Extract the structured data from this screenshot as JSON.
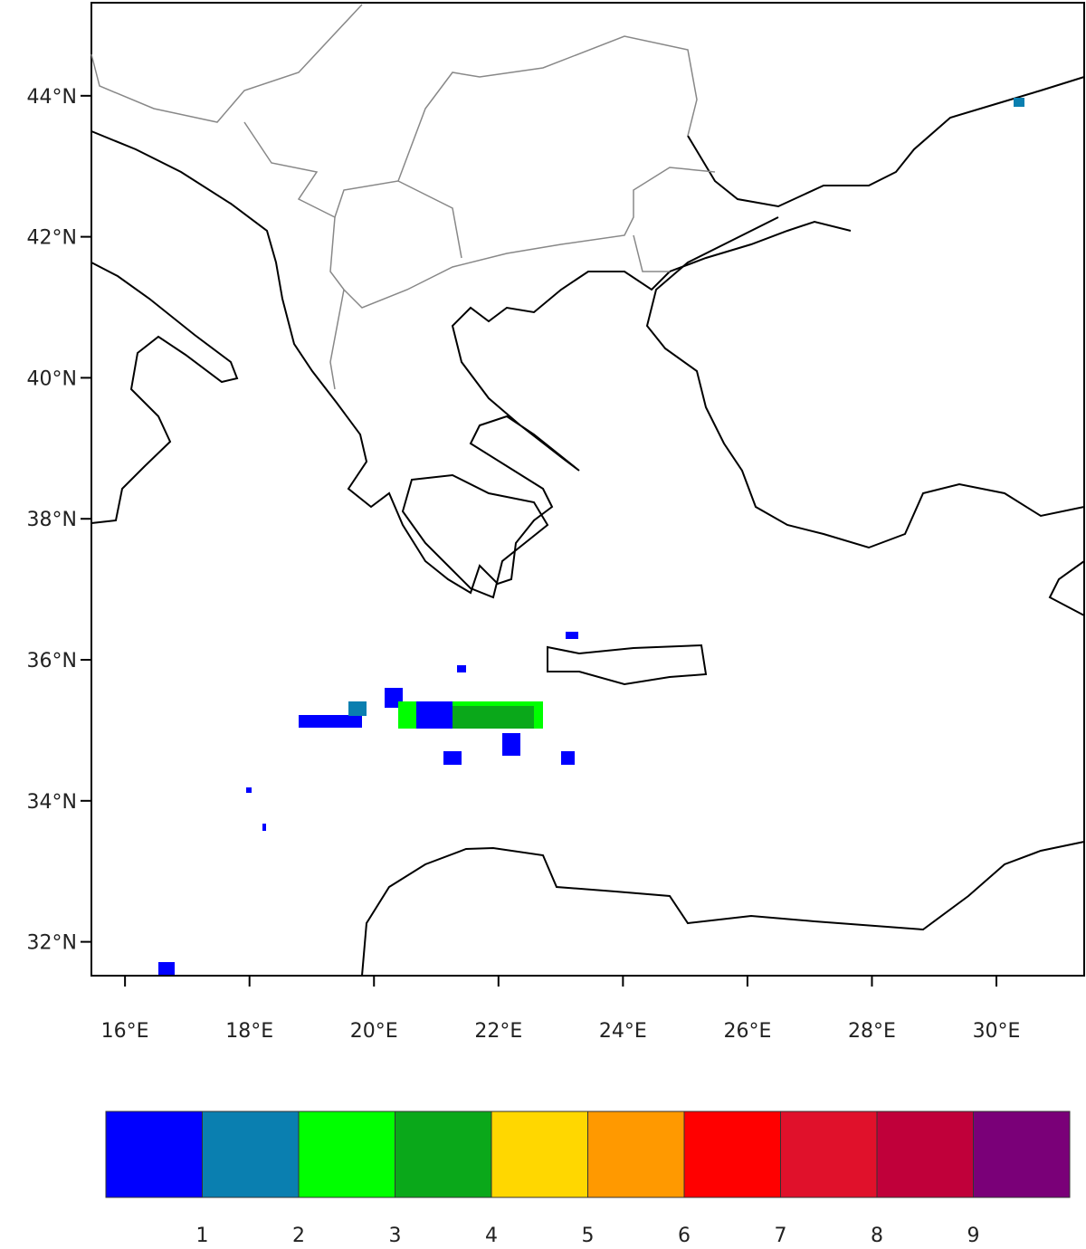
{
  "map": {
    "xlim": [
      15.46,
      31.41
    ],
    "ylim": [
      31.52,
      45.32
    ],
    "xticks": [
      {
        "value": 16,
        "label": "16°E"
      },
      {
        "value": 18,
        "label": "18°E"
      },
      {
        "value": 20,
        "label": "20°E"
      },
      {
        "value": 22,
        "label": "22°E"
      },
      {
        "value": 24,
        "label": "24°E"
      },
      {
        "value": 26,
        "label": "26°E"
      },
      {
        "value": 28,
        "label": "28°E"
      },
      {
        "value": 30,
        "label": "30°E"
      }
    ],
    "yticks": [
      {
        "value": 32,
        "label": "32°N"
      },
      {
        "value": 34,
        "label": "34°N"
      },
      {
        "value": 36,
        "label": "36°N"
      },
      {
        "value": 38,
        "label": "38°N"
      },
      {
        "value": 40,
        "label": "40°N"
      },
      {
        "value": 42,
        "label": "42°N"
      },
      {
        "value": 44,
        "label": "44°N"
      }
    ]
  },
  "colorbar": {
    "levels": [
      1,
      2,
      3,
      4,
      5,
      6,
      7,
      8,
      9
    ],
    "colors": [
      "#0000ff",
      "#0a7fb0",
      "#00ff00",
      "#0aa81a",
      "#ffd700",
      "#ff9900",
      "#ff0000",
      "#e0112b",
      "#c0003a",
      "#7a0078"
    ]
  }
}
